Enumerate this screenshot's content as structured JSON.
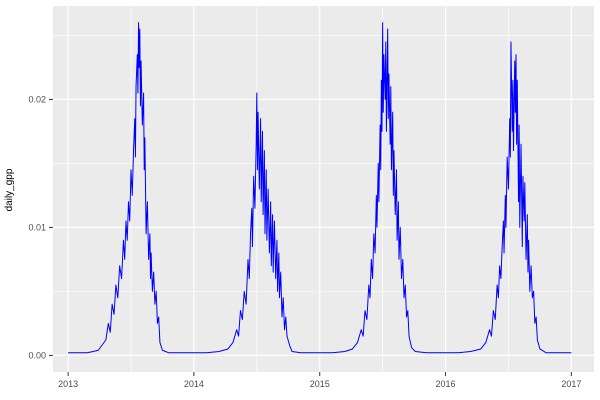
{
  "chart_data": {
    "type": "line",
    "title": "",
    "xlabel": "",
    "ylabel": "daily_gpp",
    "xlim": [
      2012.88,
      2017.18
    ],
    "ylim": [
      -0.0013,
      0.0273
    ],
    "grid": true,
    "legend": "none",
    "x_ticks": {
      "values": [
        2013,
        2014,
        2015,
        2016,
        2017
      ],
      "labels": [
        "2013",
        "2014",
        "2015",
        "2016",
        "2017"
      ]
    },
    "y_ticks": {
      "values": [
        0,
        0.01,
        0.02
      ],
      "labels": [
        "0.00",
        "0.01",
        "0.02"
      ]
    },
    "x_minor": [
      2013.5,
      2014.5,
      2015.5,
      2016.5
    ],
    "y_minor": [
      0.005,
      0.015,
      0.025
    ],
    "style": {
      "panel_bg": "#ebebeb",
      "grid_major": "#ffffff",
      "grid_minor": "#ffffff",
      "line_color": "#0000ff",
      "tick_text_color": "#4d4d4d",
      "axis_title_color": "#000000",
      "tick_mark_color": "#333333",
      "outer_bg": "#ffffff"
    },
    "series": [
      {
        "name": "daily_gpp",
        "points": [
          [
            2013.0,
            0.0002
          ],
          [
            2013.05,
            0.0002
          ],
          [
            2013.1,
            0.0002
          ],
          [
            2013.15,
            0.0002
          ],
          [
            2013.2,
            0.0003
          ],
          [
            2013.24,
            0.0004
          ],
          [
            2013.27,
            0.0008
          ],
          [
            2013.3,
            0.0012
          ],
          [
            2013.32,
            0.0025
          ],
          [
            2013.335,
            0.0018
          ],
          [
            2013.35,
            0.004
          ],
          [
            2013.365,
            0.0032
          ],
          [
            2013.38,
            0.0055
          ],
          [
            2013.395,
            0.0045
          ],
          [
            2013.41,
            0.007
          ],
          [
            2013.425,
            0.006
          ],
          [
            2013.44,
            0.009
          ],
          [
            2013.45,
            0.0075
          ],
          [
            2013.46,
            0.0105
          ],
          [
            2013.47,
            0.009
          ],
          [
            2013.48,
            0.012
          ],
          [
            2013.49,
            0.0105
          ],
          [
            2013.5,
            0.0145
          ],
          [
            2013.51,
            0.0125
          ],
          [
            2013.52,
            0.016
          ],
          [
            2013.53,
            0.0185
          ],
          [
            2013.535,
            0.0155
          ],
          [
            2013.54,
            0.021
          ],
          [
            2013.55,
            0.0235
          ],
          [
            2013.555,
            0.0205
          ],
          [
            2013.56,
            0.026
          ],
          [
            2013.565,
            0.0225
          ],
          [
            2013.57,
            0.0255
          ],
          [
            2013.575,
            0.0195
          ],
          [
            2013.58,
            0.023
          ],
          [
            2013.59,
            0.018
          ],
          [
            2013.6,
            0.0205
          ],
          [
            2013.605,
            0.0145
          ],
          [
            2013.61,
            0.017
          ],
          [
            2013.62,
            0.0095
          ],
          [
            2013.63,
            0.012
          ],
          [
            2013.64,
            0.0075
          ],
          [
            2013.65,
            0.0095
          ],
          [
            2013.655,
            0.006
          ],
          [
            2013.66,
            0.008
          ],
          [
            2013.67,
            0.005
          ],
          [
            2013.68,
            0.0065
          ],
          [
            2013.69,
            0.004
          ],
          [
            2013.7,
            0.005
          ],
          [
            2013.71,
            0.0025
          ],
          [
            2013.72,
            0.003
          ],
          [
            2013.73,
            0.001
          ],
          [
            2013.75,
            0.0004
          ],
          [
            2013.8,
            0.0002
          ],
          [
            2013.9,
            0.0002
          ],
          [
            2014.0,
            0.0002
          ],
          [
            2014.1,
            0.0002
          ],
          [
            2014.2,
            0.0003
          ],
          [
            2014.27,
            0.0005
          ],
          [
            2014.31,
            0.001
          ],
          [
            2014.34,
            0.002
          ],
          [
            2014.355,
            0.0015
          ],
          [
            2014.37,
            0.0035
          ],
          [
            2014.385,
            0.0028
          ],
          [
            2014.4,
            0.005
          ],
          [
            2014.415,
            0.004
          ],
          [
            2014.43,
            0.0075
          ],
          [
            2014.44,
            0.006
          ],
          [
            2014.45,
            0.0095
          ],
          [
            2014.46,
            0.0115
          ],
          [
            2014.465,
            0.0085
          ],
          [
            2014.475,
            0.014
          ],
          [
            2014.485,
            0.0115
          ],
          [
            2014.495,
            0.0165
          ],
          [
            2014.5,
            0.0205
          ],
          [
            2014.505,
            0.0145
          ],
          [
            2014.51,
            0.019
          ],
          [
            2014.52,
            0.013
          ],
          [
            2014.53,
            0.0185
          ],
          [
            2014.535,
            0.012
          ],
          [
            2014.545,
            0.0175
          ],
          [
            2014.55,
            0.011
          ],
          [
            2014.56,
            0.016
          ],
          [
            2014.565,
            0.0095
          ],
          [
            2014.575,
            0.0145
          ],
          [
            2014.58,
            0.009
          ],
          [
            2014.59,
            0.013
          ],
          [
            2014.6,
            0.008
          ],
          [
            2014.61,
            0.012
          ],
          [
            2014.615,
            0.007
          ],
          [
            2014.625,
            0.011
          ],
          [
            2014.63,
            0.0065
          ],
          [
            2014.64,
            0.0105
          ],
          [
            2014.65,
            0.006
          ],
          [
            2014.66,
            0.009
          ],
          [
            2014.665,
            0.005
          ],
          [
            2014.675,
            0.008
          ],
          [
            2014.68,
            0.0045
          ],
          [
            2014.69,
            0.0065
          ],
          [
            2014.7,
            0.003
          ],
          [
            2014.71,
            0.0045
          ],
          [
            2014.72,
            0.002
          ],
          [
            2014.73,
            0.003
          ],
          [
            2014.74,
            0.0015
          ],
          [
            2014.76,
            0.0008
          ],
          [
            2014.78,
            0.0003
          ],
          [
            2014.85,
            0.0002
          ],
          [
            2014.95,
            0.0002
          ],
          [
            2015.0,
            0.0002
          ],
          [
            2015.1,
            0.0002
          ],
          [
            2015.2,
            0.0003
          ],
          [
            2015.26,
            0.0005
          ],
          [
            2015.3,
            0.001
          ],
          [
            2015.33,
            0.002
          ],
          [
            2015.345,
            0.0015
          ],
          [
            2015.36,
            0.0035
          ],
          [
            2015.375,
            0.0028
          ],
          [
            2015.39,
            0.0055
          ],
          [
            2015.4,
            0.0045
          ],
          [
            2015.41,
            0.0075
          ],
          [
            2015.42,
            0.006
          ],
          [
            2015.43,
            0.0095
          ],
          [
            2015.44,
            0.008
          ],
          [
            2015.45,
            0.0125
          ],
          [
            2015.455,
            0.01
          ],
          [
            2015.465,
            0.015
          ],
          [
            2015.47,
            0.012
          ],
          [
            2015.48,
            0.018
          ],
          [
            2015.485,
            0.0145
          ],
          [
            2015.49,
            0.0215
          ],
          [
            2015.495,
            0.0175
          ],
          [
            2015.5,
            0.026
          ],
          [
            2015.505,
            0.019
          ],
          [
            2015.51,
            0.0235
          ],
          [
            2015.52,
            0.02
          ],
          [
            2015.525,
            0.0245
          ],
          [
            2015.53,
            0.0175
          ],
          [
            2015.54,
            0.0255
          ],
          [
            2015.545,
            0.0185
          ],
          [
            2015.55,
            0.022
          ],
          [
            2015.56,
            0.0165
          ],
          [
            2015.565,
            0.021
          ],
          [
            2015.57,
            0.0145
          ],
          [
            2015.58,
            0.019
          ],
          [
            2015.585,
            0.0125
          ],
          [
            2015.59,
            0.016
          ],
          [
            2015.6,
            0.011
          ],
          [
            2015.61,
            0.0145
          ],
          [
            2015.615,
            0.009
          ],
          [
            2015.625,
            0.012
          ],
          [
            2015.63,
            0.0075
          ],
          [
            2015.64,
            0.01
          ],
          [
            2015.65,
            0.006
          ],
          [
            2015.66,
            0.0075
          ],
          [
            2015.67,
            0.0045
          ],
          [
            2015.68,
            0.0055
          ],
          [
            2015.69,
            0.003
          ],
          [
            2015.7,
            0.0035
          ],
          [
            2015.71,
            0.0015
          ],
          [
            2015.73,
            0.0006
          ],
          [
            2015.76,
            0.0003
          ],
          [
            2015.85,
            0.0002
          ],
          [
            2015.95,
            0.0002
          ],
          [
            2016.0,
            0.0002
          ],
          [
            2016.1,
            0.0002
          ],
          [
            2016.2,
            0.0003
          ],
          [
            2016.28,
            0.0005
          ],
          [
            2016.32,
            0.001
          ],
          [
            2016.35,
            0.002
          ],
          [
            2016.365,
            0.0015
          ],
          [
            2016.38,
            0.0035
          ],
          [
            2016.395,
            0.0028
          ],
          [
            2016.41,
            0.0055
          ],
          [
            2016.42,
            0.0045
          ],
          [
            2016.43,
            0.007
          ],
          [
            2016.44,
            0.006
          ],
          [
            2016.45,
            0.0085
          ],
          [
            2016.46,
            0.0105
          ],
          [
            2016.465,
            0.008
          ],
          [
            2016.475,
            0.0125
          ],
          [
            2016.48,
            0.01
          ],
          [
            2016.49,
            0.0155
          ],
          [
            2016.5,
            0.013
          ],
          [
            2016.51,
            0.0185
          ],
          [
            2016.515,
            0.0155
          ],
          [
            2016.52,
            0.0245
          ],
          [
            2016.53,
            0.0175
          ],
          [
            2016.535,
            0.0215
          ],
          [
            2016.54,
            0.016
          ],
          [
            2016.55,
            0.023
          ],
          [
            2016.555,
            0.019
          ],
          [
            2016.56,
            0.0235
          ],
          [
            2016.565,
            0.0165
          ],
          [
            2016.57,
            0.0215
          ],
          [
            2016.58,
            0.012
          ],
          [
            2016.585,
            0.018
          ],
          [
            2016.59,
            0.01
          ],
          [
            2016.6,
            0.0165
          ],
          [
            2016.61,
            0.0085
          ],
          [
            2016.615,
            0.014
          ],
          [
            2016.625,
            0.0105
          ],
          [
            2016.63,
            0.0135
          ],
          [
            2016.64,
            0.0075
          ],
          [
            2016.65,
            0.011
          ],
          [
            2016.655,
            0.0065
          ],
          [
            2016.66,
            0.009
          ],
          [
            2016.67,
            0.005
          ],
          [
            2016.68,
            0.007
          ],
          [
            2016.69,
            0.0045
          ],
          [
            2016.7,
            0.005
          ],
          [
            2016.71,
            0.0025
          ],
          [
            2016.72,
            0.003
          ],
          [
            2016.73,
            0.0012
          ],
          [
            2016.75,
            0.0005
          ],
          [
            2016.8,
            0.0002
          ],
          [
            2016.9,
            0.0002
          ],
          [
            2017.0,
            0.0002
          ]
        ]
      }
    ]
  }
}
